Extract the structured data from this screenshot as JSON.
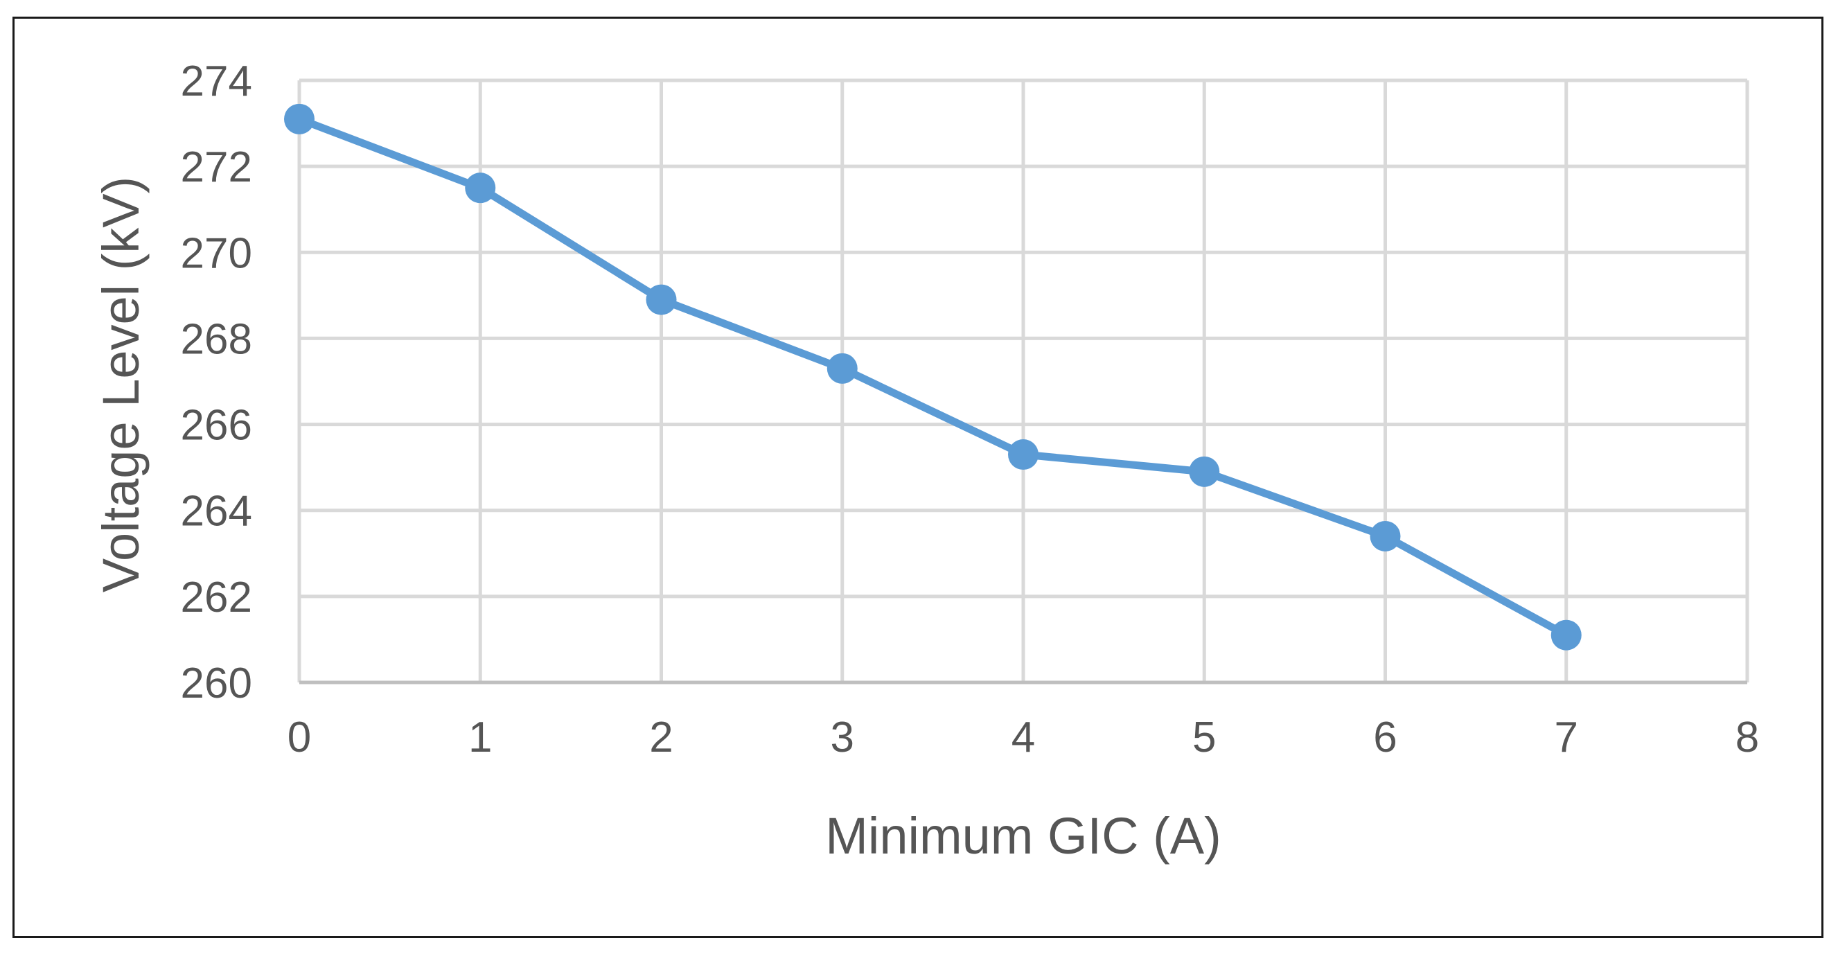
{
  "chart_data": {
    "type": "line",
    "title": "",
    "xlabel": "Minimum GIC (A)",
    "ylabel": "Voltage Level (kV)",
    "xlim": [
      0,
      8
    ],
    "ylim": [
      260,
      274
    ],
    "x_ticks": [
      0,
      1,
      2,
      3,
      4,
      5,
      6,
      7,
      8
    ],
    "y_ticks": [
      260,
      262,
      264,
      266,
      268,
      270,
      272,
      274
    ],
    "grid": true,
    "legend": "none",
    "series": [
      {
        "color": "#5b9bd5",
        "x": [
          0,
          1,
          2,
          3,
          4,
          5,
          6,
          7
        ],
        "y": [
          273.1,
          271.5,
          268.9,
          267.3,
          265.3,
          264.9,
          263.4,
          261.1
        ]
      }
    ],
    "gridColor": "#d9d9d9",
    "axisColor": "#bfbfbf"
  }
}
